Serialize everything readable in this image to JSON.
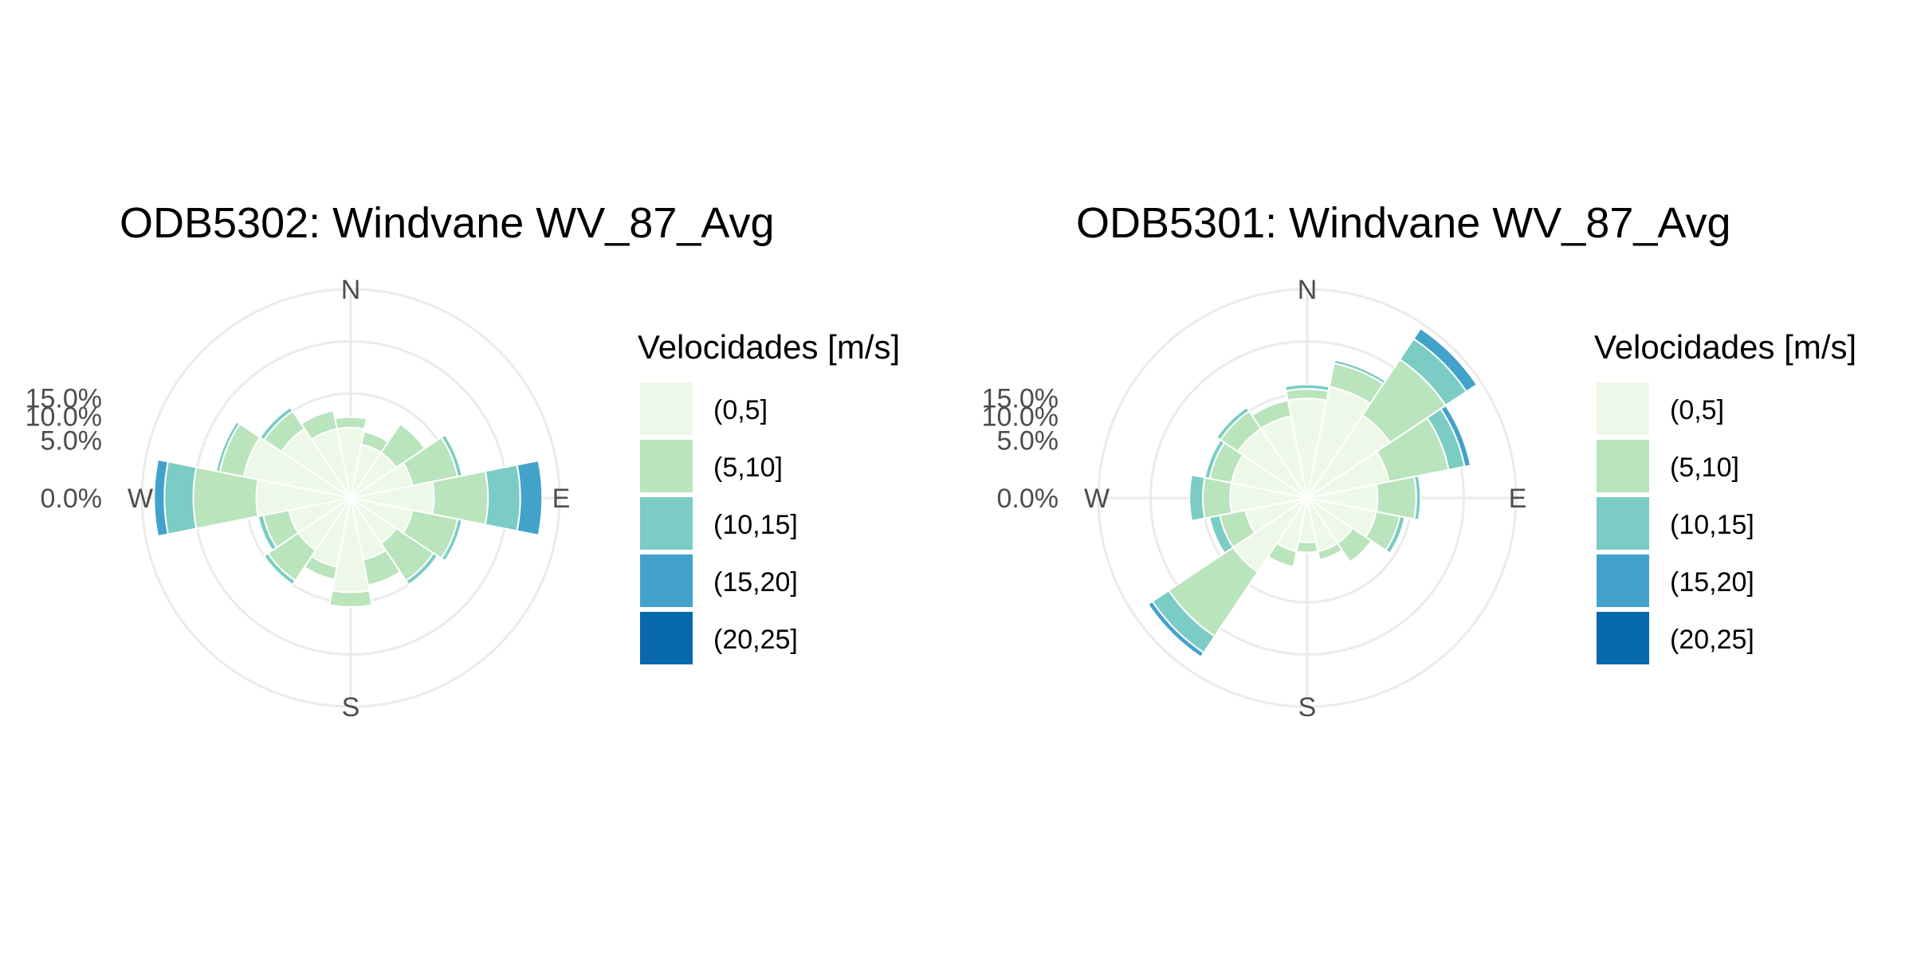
{
  "chart_data": [
    {
      "type": "wind-rose",
      "title": "ODB5302: Windvane WV_87_Avg",
      "direction_labels": [
        "N",
        "E",
        "S",
        "W"
      ],
      "radial_ticks": [
        "0.0%",
        "5.0%",
        "10.0%",
        "15.0%"
      ],
      "radial_max": 22,
      "legend_title": "Velocidades [m/s]",
      "bins": [
        "(0,5]",
        "(5,10]",
        "(10,15]",
        "(15,20]",
        "(20,25]"
      ],
      "colors": [
        "#edf8e9",
        "#bae4bc",
        "#7bccc4",
        "#43a2ca",
        "#0868ac"
      ],
      "sector_width_deg": 22.5,
      "sectors": [
        {
          "direction": 0,
          "values": [
            2.5,
            0.8,
            0,
            0,
            0
          ]
        },
        {
          "direction": 22.5,
          "values": [
            1.5,
            0.8,
            0,
            0,
            0
          ]
        },
        {
          "direction": 45,
          "values": [
            1.5,
            2.5,
            0,
            0,
            0
          ]
        },
        {
          "direction": 67.5,
          "values": [
            2.0,
            4.0,
            0.5,
            0,
            0
          ]
        },
        {
          "direction": 90,
          "values": [
            3.5,
            6.0,
            5.0,
            4.0,
            0
          ]
        },
        {
          "direction": 112.5,
          "values": [
            2.0,
            4.0,
            0.5,
            0,
            0
          ]
        },
        {
          "direction": 135,
          "values": [
            1.5,
            3.5,
            0.5,
            0,
            0
          ]
        },
        {
          "direction": 157.5,
          "values": [
            2.0,
            2.0,
            0,
            0,
            0
          ]
        },
        {
          "direction": 180,
          "values": [
            4.5,
            1.5,
            0,
            0,
            0
          ]
        },
        {
          "direction": 202.5,
          "values": [
            2.5,
            1.0,
            0,
            0,
            0
          ]
        },
        {
          "direction": 225,
          "values": [
            2.0,
            3.0,
            0.5,
            0,
            0
          ]
        },
        {
          "direction": 247.5,
          "values": [
            2.0,
            2.0,
            0.5,
            0,
            0
          ]
        },
        {
          "direction": 270,
          "values": [
            4.5,
            8.0,
            5.0,
            2.0,
            0
          ]
        },
        {
          "direction": 292.5,
          "values": [
            6.0,
            3.0,
            0.5,
            0,
            0
          ]
        },
        {
          "direction": 315,
          "values": [
            3.5,
            2.0,
            0.5,
            0,
            0
          ]
        },
        {
          "direction": 337.5,
          "values": [
            2.5,
            1.5,
            0,
            0,
            0
          ]
        }
      ]
    },
    {
      "type": "wind-rose",
      "title": "ODB5301: Windvane WV_87_Avg",
      "direction_labels": [
        "N",
        "E",
        "S",
        "W"
      ],
      "radial_ticks": [
        "0.0%",
        "5.0%",
        "10.0%",
        "15.0%"
      ],
      "radial_max": 22,
      "legend_title": "Velocidades [m/s]",
      "bins": [
        "(0,5]",
        "(5,10]",
        "(10,15]",
        "(15,20]",
        "(20,25]"
      ],
      "colors": [
        "#edf8e9",
        "#bae4bc",
        "#7bccc4",
        "#43a2ca",
        "#0868ac"
      ],
      "sector_width_deg": 22.5,
      "sectors": [
        {
          "direction": 0,
          "values": [
            5.0,
            1.0,
            0.5,
            0,
            0
          ]
        },
        {
          "direction": 22.5,
          "values": [
            6.5,
            3.0,
            0.5,
            0,
            0
          ]
        },
        {
          "direction": 45,
          "values": [
            5.0,
            9.0,
            4.5,
            2.5,
            0
          ]
        },
        {
          "direction": 67.5,
          "values": [
            3.5,
            7.0,
            2.5,
            1.0,
            0
          ]
        },
        {
          "direction": 90,
          "values": [
            2.5,
            3.5,
            0.5,
            0,
            0
          ]
        },
        {
          "direction": 112.5,
          "values": [
            2.5,
            2.0,
            0.5,
            0,
            0
          ]
        },
        {
          "direction": 135,
          "values": [
            1.5,
            1.5,
            0,
            0,
            0
          ]
        },
        {
          "direction": 157.5,
          "values": [
            1.5,
            0.5,
            0,
            0,
            0
          ]
        },
        {
          "direction": 180,
          "values": [
            1.0,
            0.5,
            0,
            0,
            0
          ]
        },
        {
          "direction": 202.5,
          "values": [
            1.5,
            1.0,
            0,
            0,
            0
          ]
        },
        {
          "direction": 225,
          "values": [
            4.0,
            10.0,
            3.5,
            1.0,
            0
          ]
        },
        {
          "direction": 247.5,
          "values": [
            2.0,
            2.0,
            1.0,
            0,
            0
          ]
        },
        {
          "direction": 270,
          "values": [
            3.0,
            2.5,
            1.5,
            0,
            0
          ]
        },
        {
          "direction": 292.5,
          "values": [
            3.0,
            2.0,
            0.5,
            0,
            0
          ]
        },
        {
          "direction": 315,
          "values": [
            3.5,
            2.0,
            0.5,
            0,
            0
          ]
        },
        {
          "direction": 337.5,
          "values": [
            3.5,
            1.5,
            0,
            0,
            0
          ]
        }
      ]
    }
  ]
}
